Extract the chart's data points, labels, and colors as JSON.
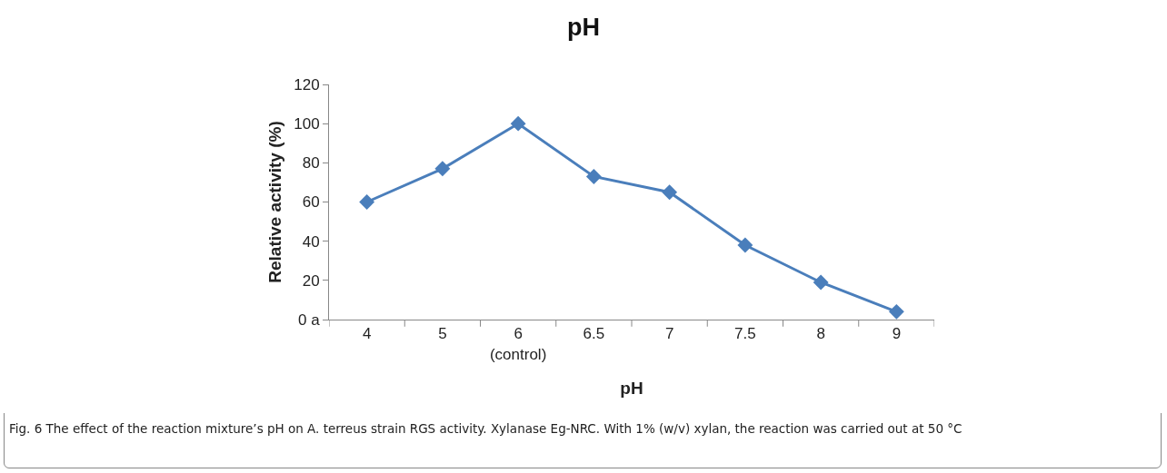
{
  "chart_data": {
    "type": "line",
    "title": "pH",
    "xlabel": "pH",
    "ylabel": "Relative activity (%)",
    "categories": [
      "4",
      "5",
      "6\n(control)",
      "6.5",
      "7",
      "7.5",
      "8",
      "9"
    ],
    "values": [
      60,
      77,
      100,
      73,
      65,
      38,
      19,
      4
    ],
    "color": "#4a7ebb",
    "marker": "diamond",
    "line_style": "solid",
    "ylim": [
      0,
      120
    ],
    "yticks": [
      {
        "value": 0,
        "label": "0 a"
      },
      20,
      40,
      60,
      80,
      100,
      120
    ],
    "grid": false,
    "legend": false,
    "annotations": [
      "Fig. 6  The effect of the reaction mixture’s pH on A. terreus strain RGS activity. Xylanase Eg-NRC. With 1% (w/v) xylan, the reaction was carried out at 50 °C"
    ]
  }
}
